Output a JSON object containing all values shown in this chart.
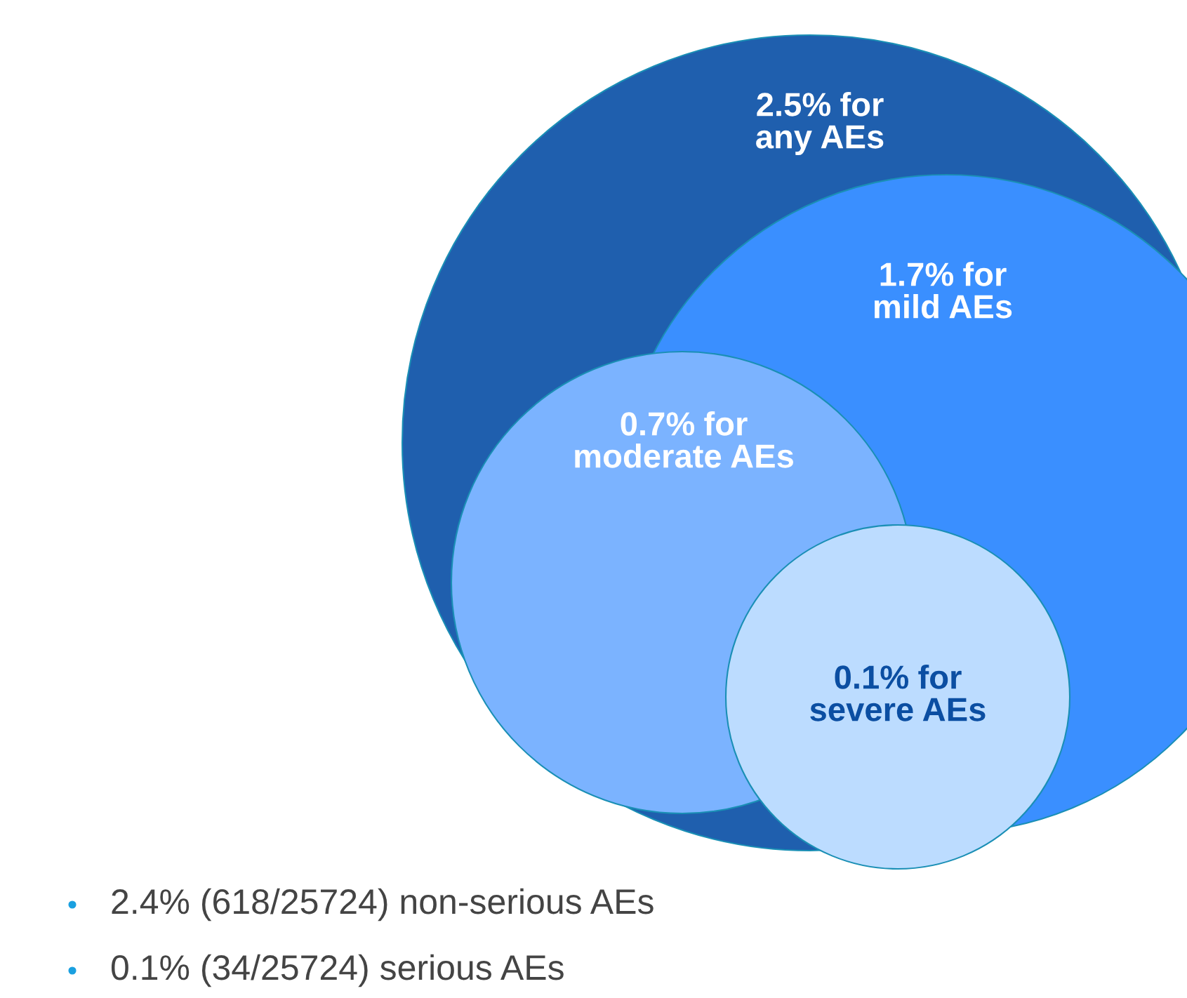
{
  "chart_data": {
    "type": "other",
    "values": [
      2.5,
      1.7,
      0.7,
      0.1
    ],
    "value_labels": [
      "2.5%",
      "1.7%",
      "0.7%",
      "0.1%"
    ],
    "categories": [
      "for\nany AEs",
      "for\nmild AEs",
      "for\nmoderate AEs",
      "for\nsevere AEs"
    ],
    "colors": [
      "#1f5fae",
      "#3a8fff",
      "#7bb3ff",
      "#bcdcff"
    ],
    "annotations": [
      "2.4% (618/25724) non-serious AEs",
      "0.1% (34/25724) serious AEs"
    ]
  }
}
